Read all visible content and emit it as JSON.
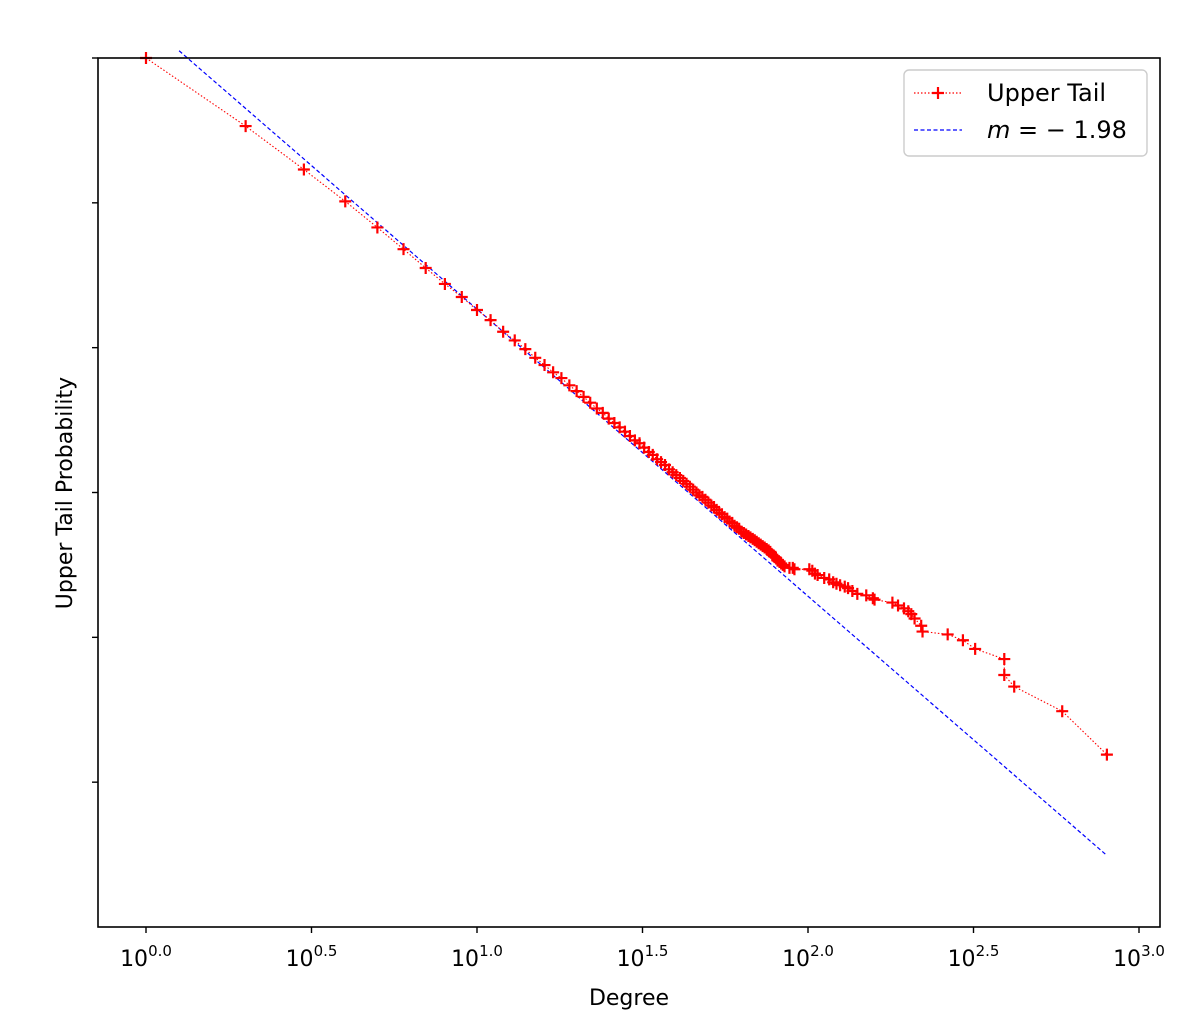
{
  "chart_data": {
    "type": "line",
    "xlabel": "Degree",
    "ylabel": "Upper Tail Probability",
    "x_scale": "log10",
    "y_scale": "log10",
    "xlim_log10": [
      -0.15,
      3.05
    ],
    "ylim_log10": [
      -5.9,
      0.1
    ],
    "x_ticks": [
      {
        "exp": 0.0,
        "base": "10",
        "sup": "0.0"
      },
      {
        "exp": 0.5,
        "base": "10",
        "sup": "0.5"
      },
      {
        "exp": 1.0,
        "base": "10",
        "sup": "1.0"
      },
      {
        "exp": 1.5,
        "base": "10",
        "sup": "1.5"
      },
      {
        "exp": 2.0,
        "base": "10",
        "sup": "2.0"
      },
      {
        "exp": 2.5,
        "base": "10",
        "sup": "2.5"
      },
      {
        "exp": 3.0,
        "base": "10",
        "sup": "3.0"
      }
    ],
    "y_ticks_log10": [
      0,
      -1,
      -2,
      -3,
      -4,
      -5
    ],
    "legend_position": "top-right",
    "series": [
      {
        "name": "Upper Tail",
        "style": "dotted",
        "marker": "+",
        "color": "#ff0000",
        "points_log10": [
          [
            0.0,
            0.0
          ],
          [
            0.301,
            -0.47
          ],
          [
            0.477,
            -0.77
          ],
          [
            0.602,
            -0.99
          ],
          [
            0.699,
            -1.17
          ],
          [
            0.778,
            -1.32
          ],
          [
            0.845,
            -1.45
          ],
          [
            0.903,
            -1.56
          ],
          [
            0.954,
            -1.65
          ],
          [
            1.0,
            -1.74
          ],
          [
            1.041,
            -1.81
          ],
          [
            1.079,
            -1.89
          ],
          [
            1.114,
            -1.95
          ],
          [
            1.146,
            -2.01
          ],
          [
            1.176,
            -2.07
          ],
          [
            1.204,
            -2.12
          ],
          [
            1.23,
            -2.17
          ],
          [
            1.255,
            -2.21
          ],
          [
            1.279,
            -2.26
          ],
          [
            1.301,
            -2.3
          ],
          [
            1.322,
            -2.34
          ],
          [
            1.342,
            -2.38
          ],
          [
            1.362,
            -2.42
          ],
          [
            1.38,
            -2.45
          ],
          [
            1.398,
            -2.49
          ],
          [
            1.415,
            -2.52
          ],
          [
            1.431,
            -2.55
          ],
          [
            1.447,
            -2.58
          ],
          [
            1.462,
            -2.61
          ],
          [
            1.477,
            -2.64
          ],
          [
            1.491,
            -2.66
          ],
          [
            1.505,
            -2.69
          ],
          [
            1.519,
            -2.72
          ],
          [
            1.531,
            -2.74
          ],
          [
            1.544,
            -2.77
          ],
          [
            1.556,
            -2.79
          ],
          [
            1.568,
            -2.81
          ],
          [
            1.58,
            -2.84
          ],
          [
            1.591,
            -2.86
          ],
          [
            1.602,
            -2.88
          ],
          [
            1.613,
            -2.9
          ],
          [
            1.623,
            -2.92
          ],
          [
            1.633,
            -2.94
          ],
          [
            1.643,
            -2.96
          ],
          [
            1.653,
            -2.98
          ],
          [
            1.663,
            -3.0
          ],
          [
            1.672,
            -3.02
          ],
          [
            1.681,
            -3.03
          ],
          [
            1.69,
            -3.05
          ],
          [
            1.699,
            -3.07
          ],
          [
            1.708,
            -3.09
          ],
          [
            1.716,
            -3.1
          ],
          [
            1.724,
            -3.12
          ],
          [
            1.732,
            -3.14
          ],
          [
            1.74,
            -3.15
          ],
          [
            1.748,
            -3.17
          ],
          [
            1.756,
            -3.18
          ],
          [
            1.763,
            -3.2
          ],
          [
            1.771,
            -3.21
          ],
          [
            1.778,
            -3.23
          ],
          [
            1.785,
            -3.24
          ],
          [
            1.792,
            -3.25
          ],
          [
            1.799,
            -3.27
          ],
          [
            1.806,
            -3.28
          ],
          [
            1.813,
            -3.29
          ],
          [
            1.82,
            -3.3
          ],
          [
            1.826,
            -3.31
          ],
          [
            1.833,
            -3.32
          ],
          [
            1.839,
            -3.33
          ],
          [
            1.845,
            -3.34
          ],
          [
            1.851,
            -3.35
          ],
          [
            1.857,
            -3.36
          ],
          [
            1.863,
            -3.37
          ],
          [
            1.869,
            -3.38
          ],
          [
            1.875,
            -3.39
          ],
          [
            1.881,
            -3.4
          ],
          [
            1.886,
            -3.41
          ],
          [
            1.892,
            -3.43
          ],
          [
            1.897,
            -3.44
          ],
          [
            1.903,
            -3.45
          ],
          [
            1.908,
            -3.47
          ],
          [
            1.914,
            -3.48
          ],
          [
            1.919,
            -3.49
          ],
          [
            1.924,
            -3.5
          ],
          [
            1.929,
            -3.51
          ],
          [
            1.944,
            -3.52
          ],
          [
            1.954,
            -3.52
          ],
          [
            1.959,
            -3.53
          ],
          [
            2.004,
            -3.53
          ],
          [
            2.013,
            -3.54
          ],
          [
            2.021,
            -3.56
          ],
          [
            2.029,
            -3.57
          ],
          [
            2.049,
            -3.59
          ],
          [
            2.064,
            -3.6
          ],
          [
            2.076,
            -3.62
          ],
          [
            2.086,
            -3.63
          ],
          [
            2.097,
            -3.64
          ],
          [
            2.111,
            -3.65
          ],
          [
            2.121,
            -3.66
          ],
          [
            2.134,
            -3.68
          ],
          [
            2.149,
            -3.7
          ],
          [
            2.176,
            -3.71
          ],
          [
            2.196,
            -3.73
          ],
          [
            2.201,
            -3.74
          ],
          [
            2.255,
            -3.76
          ],
          [
            2.272,
            -3.78
          ],
          [
            2.29,
            -3.8
          ],
          [
            2.303,
            -3.82
          ],
          [
            2.312,
            -3.84
          ],
          [
            2.322,
            -3.87
          ],
          [
            2.342,
            -3.92
          ],
          [
            2.346,
            -3.96
          ],
          [
            2.422,
            -3.98
          ],
          [
            2.468,
            -4.02
          ],
          [
            2.505,
            -4.08
          ],
          [
            2.593,
            -4.15
          ],
          [
            2.593,
            -4.26
          ],
          [
            2.623,
            -4.34
          ],
          [
            2.768,
            -4.51
          ],
          [
            2.903,
            -4.81
          ]
        ]
      },
      {
        "name": "m = -1.98",
        "style": "dashed",
        "color": "#0000ff",
        "slope": -1.98,
        "x_range_log10": [
          0.1,
          2.9
        ],
        "intercept_log10": 0.93
      }
    ]
  },
  "legend": {
    "entries": [
      {
        "label": "Upper Tail"
      },
      {
        "label_prefix": "m",
        "label_rest": " = − 1.98"
      }
    ]
  }
}
